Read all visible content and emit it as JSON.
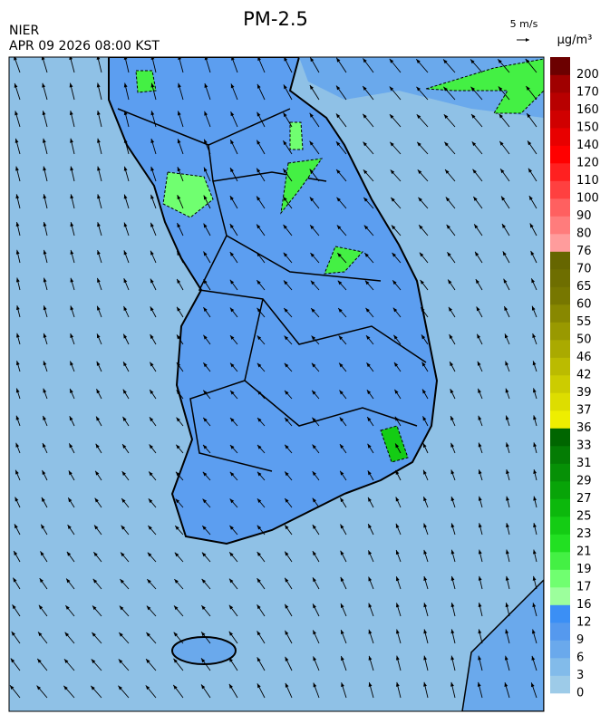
{
  "header": {
    "title": "PM-2.5",
    "organization": "NIER",
    "timestamp": "APR 09 2026 08:00 KST",
    "wind_reference": "5 m/s",
    "unit": "μg/m³"
  },
  "colorbar": {
    "levels": [
      0,
      3,
      6,
      9,
      12,
      16,
      17,
      19,
      21,
      23,
      25,
      27,
      29,
      31,
      33,
      36,
      37,
      39,
      42,
      46,
      50,
      55,
      60,
      65,
      70,
      76,
      80,
      90,
      100,
      110,
      120,
      140,
      150,
      160,
      170,
      200
    ],
    "colors": [
      "#9dcbe8",
      "#82bbea",
      "#6aa9ec",
      "#5599ee",
      "#3b8ff5",
      "#9cff9c",
      "#70ff70",
      "#44f044",
      "#22e022",
      "#14cc14",
      "#0cb80c",
      "#08a408",
      "#069006",
      "#047c04",
      "#006600",
      "#eeee00",
      "#dddd00",
      "#cccc00",
      "#bbbb00",
      "#aaaa00",
      "#999900",
      "#888800",
      "#777700",
      "#6e6e00",
      "#666600",
      "#ff9c9c",
      "#ff7c7c",
      "#ff6060",
      "#ff4040",
      "#ff2020",
      "#ff0000",
      "#e80000",
      "#d00000",
      "#b80000",
      "#a00000",
      "#6c0000"
    ]
  }
}
